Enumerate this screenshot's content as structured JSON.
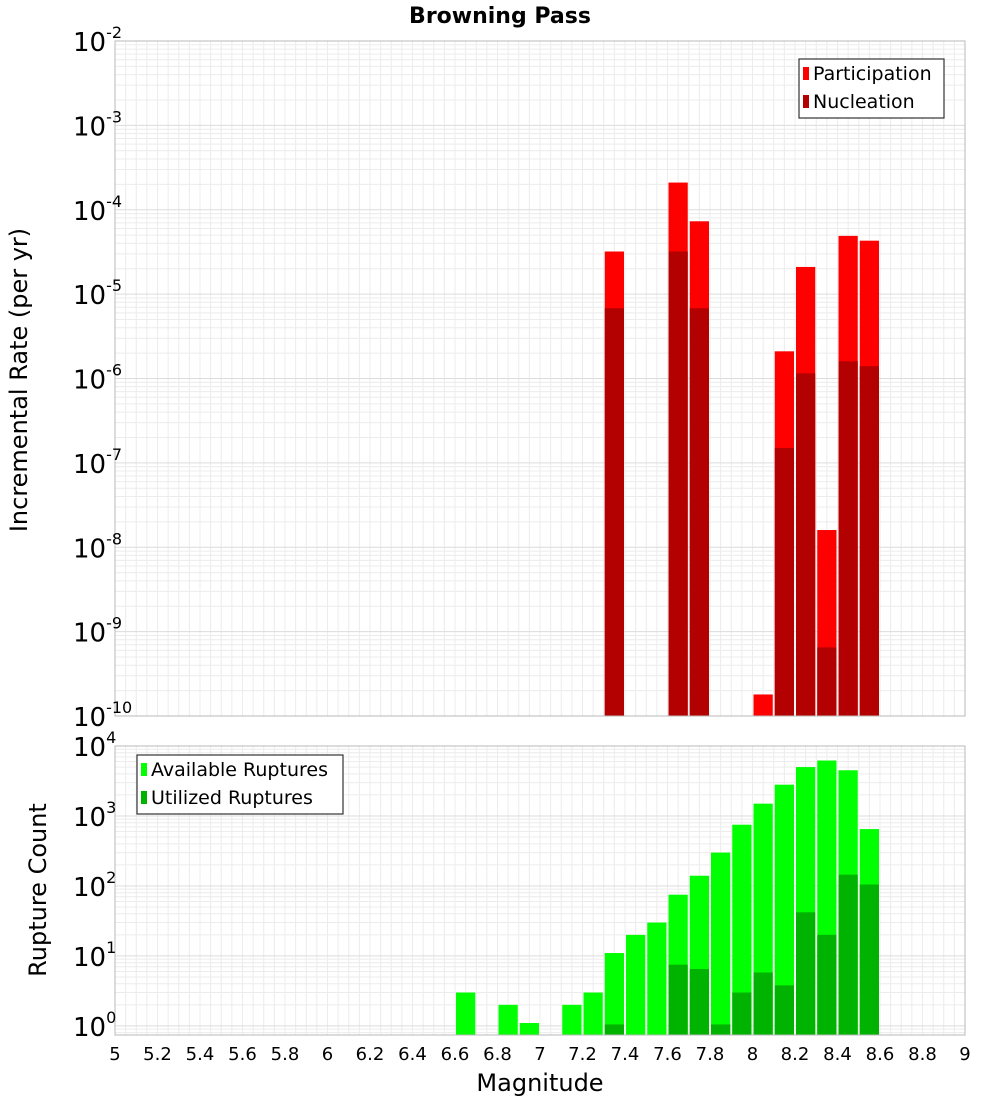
{
  "chart_data": {
    "type": "bar",
    "title": "Browning Pass",
    "xlabel": "Magnitude",
    "xlim": [
      5,
      9
    ],
    "x_ticks": [
      "5",
      "5.2",
      "5.4",
      "5.6",
      "5.8",
      "6",
      "6.2",
      "6.4",
      "6.6",
      "6.8",
      "7",
      "7.2",
      "7.4",
      "7.6",
      "7.8",
      "8",
      "8.2",
      "8.4",
      "8.6",
      "8.8",
      "9"
    ],
    "bin_width": 0.1,
    "panels": [
      {
        "name": "rate-panel",
        "ylabel": "Incremental Rate (per yr)",
        "yscale": "log",
        "ylim_exp": [
          -10,
          -2
        ],
        "y_ticks": [
          {
            "base": "10",
            "exp": "-2"
          },
          {
            "base": "10",
            "exp": "-3"
          },
          {
            "base": "10",
            "exp": "-4"
          },
          {
            "base": "10",
            "exp": "-5"
          },
          {
            "base": "10",
            "exp": "-6"
          },
          {
            "base": "10",
            "exp": "-7"
          },
          {
            "base": "10",
            "exp": "-8"
          },
          {
            "base": "10",
            "exp": "-9"
          },
          {
            "base": "10",
            "exp": "-10"
          }
        ],
        "legend": [
          {
            "name": "Participation",
            "color": "#ff0000"
          },
          {
            "name": "Nucleation",
            "color": "#b30000"
          }
        ],
        "series": [
          {
            "name": "Participation",
            "color": "#ff0000",
            "points": [
              {
                "x": 7.35,
                "y": 3.2e-05
              },
              {
                "x": 7.65,
                "y": 0.00021
              },
              {
                "x": 7.75,
                "y": 7.3e-05
              },
              {
                "x": 8.05,
                "y": 1.8e-10
              },
              {
                "x": 8.15,
                "y": 2.1e-06
              },
              {
                "x": 8.25,
                "y": 2.1e-05
              },
              {
                "x": 8.35,
                "y": 1.6e-08
              },
              {
                "x": 8.45,
                "y": 4.9e-05
              },
              {
                "x": 8.55,
                "y": 4.3e-05
              }
            ]
          },
          {
            "name": "Nucleation",
            "color": "#b30000",
            "points": [
              {
                "x": 7.35,
                "y": 6.8e-06
              },
              {
                "x": 7.65,
                "y": 3.2e-05
              },
              {
                "x": 7.75,
                "y": 6.8e-06
              },
              {
                "x": 8.15,
                "y": 1.5e-07
              },
              {
                "x": 8.25,
                "y": 1.15e-06
              },
              {
                "x": 8.35,
                "y": 6.5e-10
              },
              {
                "x": 8.45,
                "y": 1.6e-06
              },
              {
                "x": 8.55,
                "y": 1.4e-06
              }
            ]
          }
        ]
      },
      {
        "name": "count-panel",
        "ylabel": "Rupture Count",
        "yscale": "log",
        "ylim_exp": [
          -0.13,
          4
        ],
        "y_ticks": [
          {
            "base": "10",
            "exp": "4"
          },
          {
            "base": "10",
            "exp": "3"
          },
          {
            "base": "10",
            "exp": "2"
          },
          {
            "base": "10",
            "exp": "1"
          },
          {
            "base": "10",
            "exp": "0"
          }
        ],
        "legend": [
          {
            "name": "Available Ruptures",
            "color": "#00ff00"
          },
          {
            "name": "Utilized Ruptures",
            "color": "#00b300"
          }
        ],
        "series": [
          {
            "name": "Available Ruptures",
            "color": "#00ff00",
            "points": [
              {
                "x": 6.65,
                "y": 3
              },
              {
                "x": 6.85,
                "y": 2
              },
              {
                "x": 6.95,
                "y": 1.1
              },
              {
                "x": 7.15,
                "y": 2
              },
              {
                "x": 7.25,
                "y": 3
              },
              {
                "x": 7.35,
                "y": 11
              },
              {
                "x": 7.45,
                "y": 20
              },
              {
                "x": 7.55,
                "y": 30
              },
              {
                "x": 7.65,
                "y": 75
              },
              {
                "x": 7.75,
                "y": 140
              },
              {
                "x": 7.85,
                "y": 300
              },
              {
                "x": 7.95,
                "y": 750
              },
              {
                "x": 8.05,
                "y": 1500
              },
              {
                "x": 8.15,
                "y": 2800
              },
              {
                "x": 8.25,
                "y": 5000
              },
              {
                "x": 8.35,
                "y": 6200
              },
              {
                "x": 8.45,
                "y": 4500
              },
              {
                "x": 8.55,
                "y": 650
              }
            ]
          },
          {
            "name": "Utilized Ruptures",
            "color": "#00b300",
            "points": [
              {
                "x": 7.35,
                "y": 1.05
              },
              {
                "x": 7.65,
                "y": 7.5
              },
              {
                "x": 7.75,
                "y": 6.5
              },
              {
                "x": 7.85,
                "y": 1.05
              },
              {
                "x": 7.95,
                "y": 3
              },
              {
                "x": 8.05,
                "y": 5.8
              },
              {
                "x": 8.15,
                "y": 3.8
              },
              {
                "x": 8.25,
                "y": 42
              },
              {
                "x": 8.35,
                "y": 20
              },
              {
                "x": 8.45,
                "y": 145
              },
              {
                "x": 8.55,
                "y": 105
              }
            ]
          }
        ]
      }
    ]
  }
}
